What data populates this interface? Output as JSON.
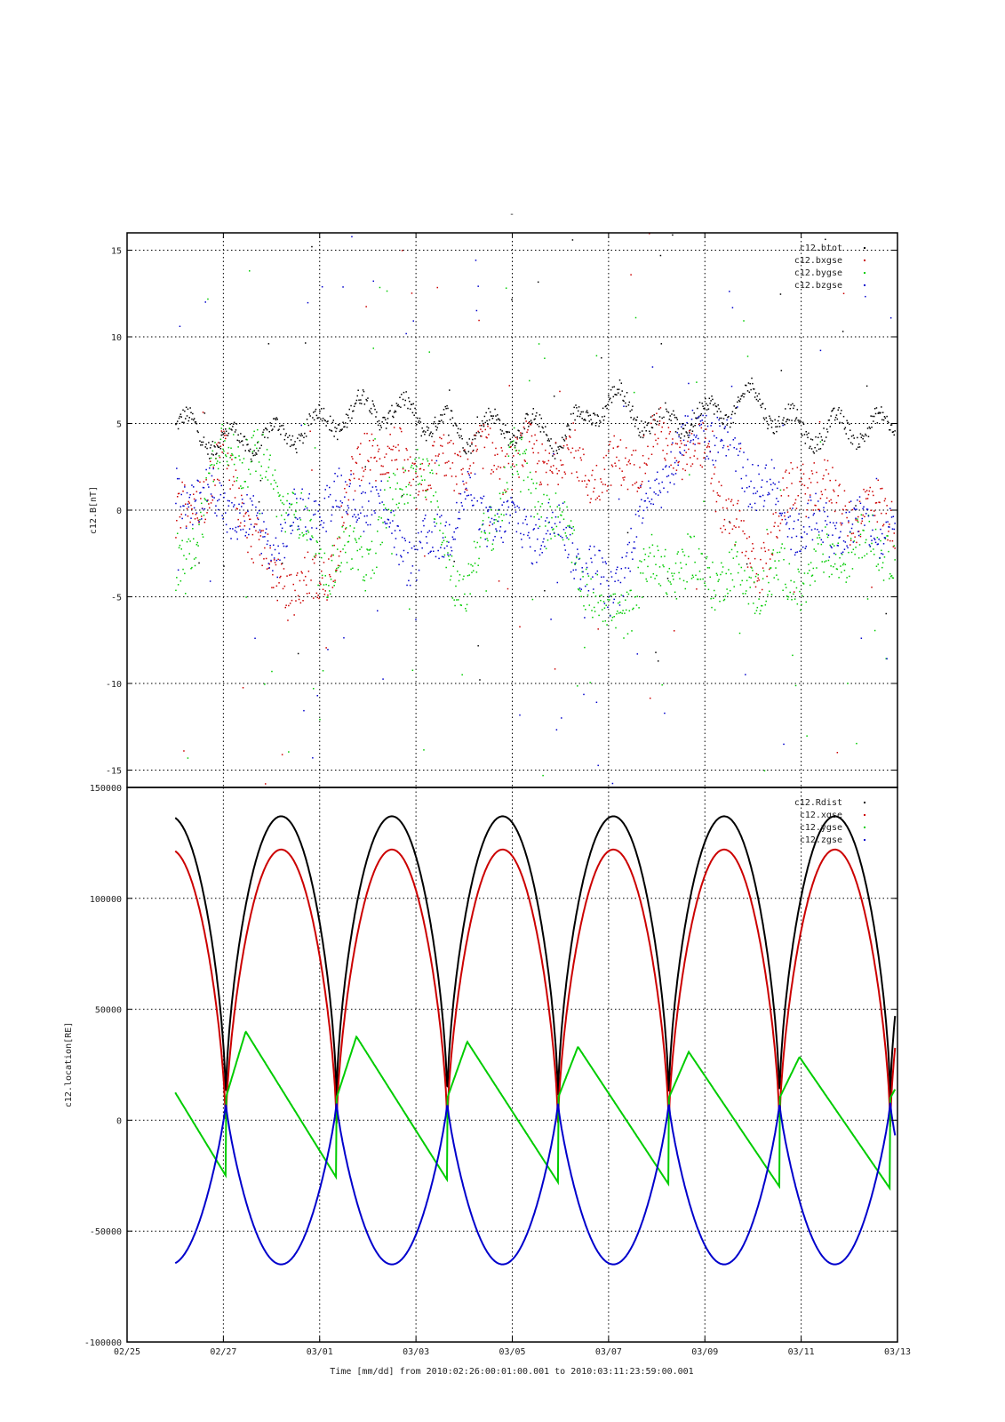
{
  "figure": {
    "top_mark": "-",
    "xlabel": "Time [mm/dd]  from 2010:02:26:00:01:00.001  to  2010:03:11:23:59:00.001"
  },
  "chart_data": [
    {
      "type": "scatter",
      "ylabel": "c12.B[nT]",
      "ylim": [
        -16,
        16
      ],
      "xlim": [
        "02/25",
        "03/13"
      ],
      "yticks": [
        -15,
        -10,
        -5,
        0,
        5,
        10,
        15
      ],
      "ytick_labels": [
        "-15",
        "-10",
        "-5",
        "0",
        "5",
        "10",
        "15"
      ],
      "grid": true,
      "legend": "top-right",
      "series": [
        {
          "name": "c12.btot",
          "color": "#000000",
          "points": [
            [
              "02/26",
              5.0
            ],
            [
              "02/27",
              4.0
            ],
            [
              "02/28",
              4.2
            ],
            [
              "03/01",
              5.0
            ],
            [
              "03/02",
              6.0
            ],
            [
              "03/03",
              5.5
            ],
            [
              "03/04",
              4.5
            ],
            [
              "03/05",
              5.0
            ],
            [
              "03/06",
              4.2
            ],
            [
              "03/07",
              6.5
            ],
            [
              "03/08",
              5.0
            ],
            [
              "03/09",
              5.5
            ],
            [
              "03/10",
              6.5
            ],
            [
              "03/11",
              4.5
            ],
            [
              "03/12",
              4.8
            ]
          ]
        },
        {
          "name": "c12.bxgse",
          "color": "#cc0000",
          "points": [
            [
              "02/26",
              -1.0
            ],
            [
              "02/27",
              3.0
            ],
            [
              "02/28",
              -4.0
            ],
            [
              "03/01",
              -4.5
            ],
            [
              "03/02",
              4.0
            ],
            [
              "03/03",
              2.0
            ],
            [
              "03/04",
              3.0
            ],
            [
              "03/05",
              3.0
            ],
            [
              "03/06",
              3.0
            ],
            [
              "03/07",
              2.0
            ],
            [
              "03/08",
              4.0
            ],
            [
              "03/09",
              3.0
            ],
            [
              "03/10",
              -3.5
            ],
            [
              "03/11",
              2.0
            ],
            [
              "03/12",
              0.0
            ]
          ]
        },
        {
          "name": "c12.bygse",
          "color": "#00cc00",
          "points": [
            [
              "02/26",
              -4.5
            ],
            [
              "02/27",
              4.0
            ],
            [
              "02/28",
              2.0
            ],
            [
              "03/01",
              -3.0
            ],
            [
              "03/02",
              -2.5
            ],
            [
              "03/03",
              3.0
            ],
            [
              "03/04",
              -5.0
            ],
            [
              "03/05",
              3.0
            ],
            [
              "03/06",
              -1.0
            ],
            [
              "03/07",
              -6.5
            ],
            [
              "03/08",
              -3.0
            ],
            [
              "03/09",
              -3.5
            ],
            [
              "03/10",
              -4.0
            ],
            [
              "03/11",
              -4.0
            ],
            [
              "03/12",
              -2.0
            ]
          ]
        },
        {
          "name": "c12.bzgse",
          "color": "#0000cc",
          "points": [
            [
              "02/26",
              1.0
            ],
            [
              "02/27",
              0.5
            ],
            [
              "02/28",
              -2.0
            ],
            [
              "03/01",
              0.5
            ],
            [
              "03/02",
              1.0
            ],
            [
              "03/03",
              -3.0
            ],
            [
              "03/04",
              0.5
            ],
            [
              "03/05",
              -1.0
            ],
            [
              "03/06",
              -1.0
            ],
            [
              "03/07",
              -5.0
            ],
            [
              "03/08",
              2.0
            ],
            [
              "03/09",
              5.0
            ],
            [
              "03/10",
              2.0
            ],
            [
              "03/11",
              -1.0
            ],
            [
              "03/12",
              -1.0
            ]
          ]
        }
      ]
    },
    {
      "type": "line",
      "ylabel": "c12.location[RE]",
      "ylim": [
        -100000,
        150000
      ],
      "xlim": [
        "02/25",
        "03/13"
      ],
      "yticks": [
        -100000,
        -50000,
        0,
        50000,
        100000,
        150000
      ],
      "ytick_labels": [
        "-100000",
        "-50000",
        "0",
        "50000",
        "100000",
        "150000"
      ],
      "xticks": [
        "02/25",
        "02/27",
        "03/01",
        "03/03",
        "03/05",
        "03/07",
        "03/09",
        "03/11",
        "03/13"
      ],
      "grid": true,
      "legend": "top-right",
      "orbit_period_days": 2.3,
      "perigee_times": [
        "02/27",
        "03/01",
        "03/03",
        "03/05",
        "03/07",
        "03/09",
        "03/11"
      ],
      "series": [
        {
          "name": "c12.Rdist",
          "color": "#000000",
          "min": 8000,
          "max": 137000
        },
        {
          "name": "c12.xgse",
          "color": "#cc0000",
          "min": -4000,
          "max": 122000
        },
        {
          "name": "c12.ygse",
          "color": "#00cc00",
          "min": -32000,
          "max": 40000
        },
        {
          "name": "c12.zgse",
          "color": "#0000cc",
          "min": -65000,
          "max": 8000
        }
      ]
    }
  ]
}
